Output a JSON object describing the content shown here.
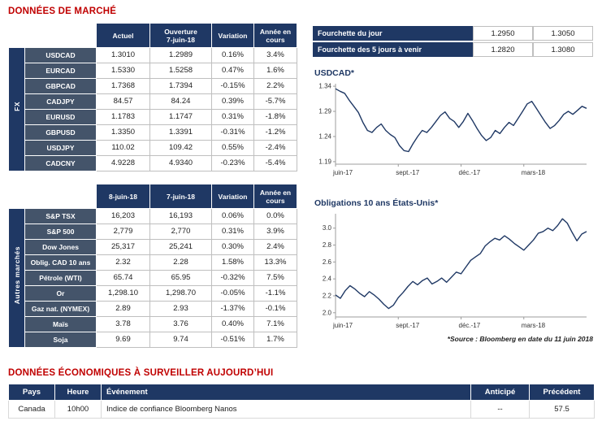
{
  "titles": {
    "market": "DONNÉES DE MARCHÉ",
    "econ": "DONNÉES ÉCONOMIQUES À SURVEILLER AUJOURD’HUI"
  },
  "source_note": "*Source : Bloomberg en date du  11 juin 2018",
  "colors": {
    "navy": "#1F3864",
    "slate": "#44546A",
    "title_red": "#C00000",
    "positive_green": "#00A14B",
    "negative_red": "#E00000",
    "line": "#1F3864"
  },
  "fx_table": {
    "group_label": "FX",
    "headers": [
      "Actuel",
      "Ouverture\n7-juin-18",
      "Variation",
      "Année en\ncours"
    ],
    "rows": [
      {
        "label": "USDCAD",
        "v1": "1.3010",
        "v2": "1.2989",
        "variation": "0.16%",
        "var_cls": "pos",
        "ytd": "3.4%",
        "ytd_cls": "pos"
      },
      {
        "label": "EURCAD",
        "v1": "1.5330",
        "v2": "1.5258",
        "variation": "0.47%",
        "var_cls": "pos",
        "ytd": "1.6%",
        "ytd_cls": "pos"
      },
      {
        "label": "GBPCAD",
        "v1": "1.7368",
        "v2": "1.7394",
        "variation": "-0.15%",
        "var_cls": "neg",
        "ytd": "2.2%",
        "ytd_cls": "pos"
      },
      {
        "label": "CADJPY",
        "v1": "84.57",
        "v2": "84.24",
        "variation": "0.39%",
        "var_cls": "pos",
        "ytd": "-5.7%",
        "ytd_cls": "neg"
      },
      {
        "label": "EURUSD",
        "v1": "1.1783",
        "v2": "1.1747",
        "variation": "0.31%",
        "var_cls": "pos",
        "ytd": "-1.8%",
        "ytd_cls": "neg"
      },
      {
        "label": "GBPUSD",
        "v1": "1.3350",
        "v2": "1.3391",
        "variation": "-0.31%",
        "var_cls": "neg",
        "ytd": "-1.2%",
        "ytd_cls": "neg"
      },
      {
        "label": "USDJPY",
        "v1": "110.02",
        "v2": "109.42",
        "variation": "0.55%",
        "var_cls": "pos",
        "ytd": "-2.4%",
        "ytd_cls": "neg"
      },
      {
        "label": "CADCNY",
        "v1": "4.9228",
        "v2": "4.9340",
        "variation": "-0.23%",
        "var_cls": "neg",
        "ytd": "-5.4%",
        "ytd_cls": "neg"
      }
    ]
  },
  "markets_table": {
    "group_label": "Autres marchés",
    "headers": [
      "8-juin-18",
      "7-juin-18",
      "Variation",
      "Année en\ncours"
    ],
    "rows": [
      {
        "label": "S&P TSX",
        "v1": "16,203",
        "v2": "16,193",
        "variation": "0.06%",
        "var_cls": "pos",
        "ytd": "0.0%",
        "ytd_cls": "neg"
      },
      {
        "label": "S&P 500",
        "v1": "2,779",
        "v2": "2,770",
        "variation": "0.31%",
        "var_cls": "pos",
        "ytd": "3.9%",
        "ytd_cls": "pos"
      },
      {
        "label": "Dow Jones",
        "v1": "25,317",
        "v2": "25,241",
        "variation": "0.30%",
        "var_cls": "pos",
        "ytd": "2.4%",
        "ytd_cls": "pos"
      },
      {
        "label": "Oblig. CAD 10 ans",
        "v1": "2.32",
        "v2": "2.28",
        "variation": "1.58%",
        "var_cls": "pos",
        "ytd": "13.3%",
        "ytd_cls": "pos"
      },
      {
        "label": "Pétrole (WTI)",
        "v1": "65.74",
        "v2": "65.95",
        "variation": "-0.32%",
        "var_cls": "neg",
        "ytd": "7.5%",
        "ytd_cls": "pos"
      },
      {
        "label": "Or",
        "v1": "1,298.10",
        "v2": "1,298.70",
        "variation": "-0.05%",
        "var_cls": "neg",
        "ytd": "-1.1%",
        "ytd_cls": "neg"
      },
      {
        "label": "Gaz nat. (NYMEX)",
        "v1": "2.89",
        "v2": "2.93",
        "variation": "-1.37%",
        "var_cls": "neg",
        "ytd": "-0.1%",
        "ytd_cls": "neg"
      },
      {
        "label": "Maïs",
        "v1": "3.78",
        "v2": "3.76",
        "variation": "0.40%",
        "var_cls": "pos",
        "ytd": "7.1%",
        "ytd_cls": "pos"
      },
      {
        "label": "Soja",
        "v1": "9.69",
        "v2": "9.74",
        "variation": "-0.51%",
        "var_cls": "neg",
        "ytd": "1.7%",
        "ytd_cls": "pos"
      }
    ]
  },
  "ranges": {
    "rows": [
      {
        "label": "Fourchette du jour",
        "low": "1.2950",
        "high": "1.3050"
      },
      {
        "label": "Fourchette des 5 jours à venir",
        "low": "1.2820",
        "high": "1.3080"
      }
    ]
  },
  "econ_table": {
    "headers": [
      "Pays",
      "Heure",
      "Événement",
      "Anticipé",
      "Précédent"
    ],
    "rows": [
      {
        "pays": "Canada",
        "heure": "10h00",
        "evenement": "Indice de confiance Bloomberg Nanos",
        "anticipe": "--",
        "precedent": "57.5"
      }
    ]
  },
  "chart_data": [
    {
      "type": "line",
      "title": "USDCAD*",
      "x_ticks": [
        "juin-17",
        "sept.-17",
        "déc.-17",
        "mars-18"
      ],
      "x_tick_pos": [
        0,
        0.25,
        0.5,
        0.75
      ],
      "y_ticks": [
        "1.19",
        "1.24",
        "1.29",
        "1.34"
      ],
      "ylim": [
        1.185,
        1.345
      ],
      "legend": "off",
      "grid": "off",
      "series": [
        {
          "name": "USDCAD",
          "values": [
            1.335,
            1.33,
            1.326,
            1.312,
            1.3,
            1.288,
            1.268,
            1.252,
            1.248,
            1.258,
            1.265,
            1.252,
            1.244,
            1.238,
            1.222,
            1.212,
            1.21,
            1.226,
            1.24,
            1.252,
            1.248,
            1.258,
            1.27,
            1.282,
            1.289,
            1.276,
            1.27,
            1.258,
            1.27,
            1.286,
            1.272,
            1.256,
            1.242,
            1.232,
            1.238,
            1.252,
            1.246,
            1.258,
            1.268,
            1.262,
            1.276,
            1.29,
            1.305,
            1.31,
            1.296,
            1.282,
            1.268,
            1.256,
            1.262,
            1.272,
            1.284,
            1.29,
            1.284,
            1.292,
            1.3,
            1.296
          ]
        }
      ]
    },
    {
      "type": "line",
      "title": "Obligations 10 ans États-Unis*",
      "x_ticks": [
        "juin-17",
        "sept.-17",
        "déc.-17",
        "mars-18"
      ],
      "x_tick_pos": [
        0,
        0.25,
        0.5,
        0.75
      ],
      "y_ticks": [
        "2.0",
        "2.2",
        "2.4",
        "2.6",
        "2.8",
        "3.0"
      ],
      "ylim": [
        1.95,
        3.17
      ],
      "legend": "off",
      "grid": "off",
      "series": [
        {
          "name": "US 10Y yield",
          "values": [
            2.21,
            2.17,
            2.26,
            2.32,
            2.28,
            2.23,
            2.19,
            2.25,
            2.21,
            2.16,
            2.1,
            2.05,
            2.09,
            2.18,
            2.24,
            2.31,
            2.37,
            2.33,
            2.38,
            2.41,
            2.34,
            2.37,
            2.41,
            2.36,
            2.42,
            2.48,
            2.46,
            2.54,
            2.62,
            2.66,
            2.7,
            2.79,
            2.84,
            2.88,
            2.86,
            2.91,
            2.87,
            2.82,
            2.78,
            2.74,
            2.8,
            2.86,
            2.94,
            2.96,
            3.0,
            2.97,
            3.03,
            3.11,
            3.06,
            2.95,
            2.85,
            2.93,
            2.96
          ]
        }
      ]
    }
  ]
}
